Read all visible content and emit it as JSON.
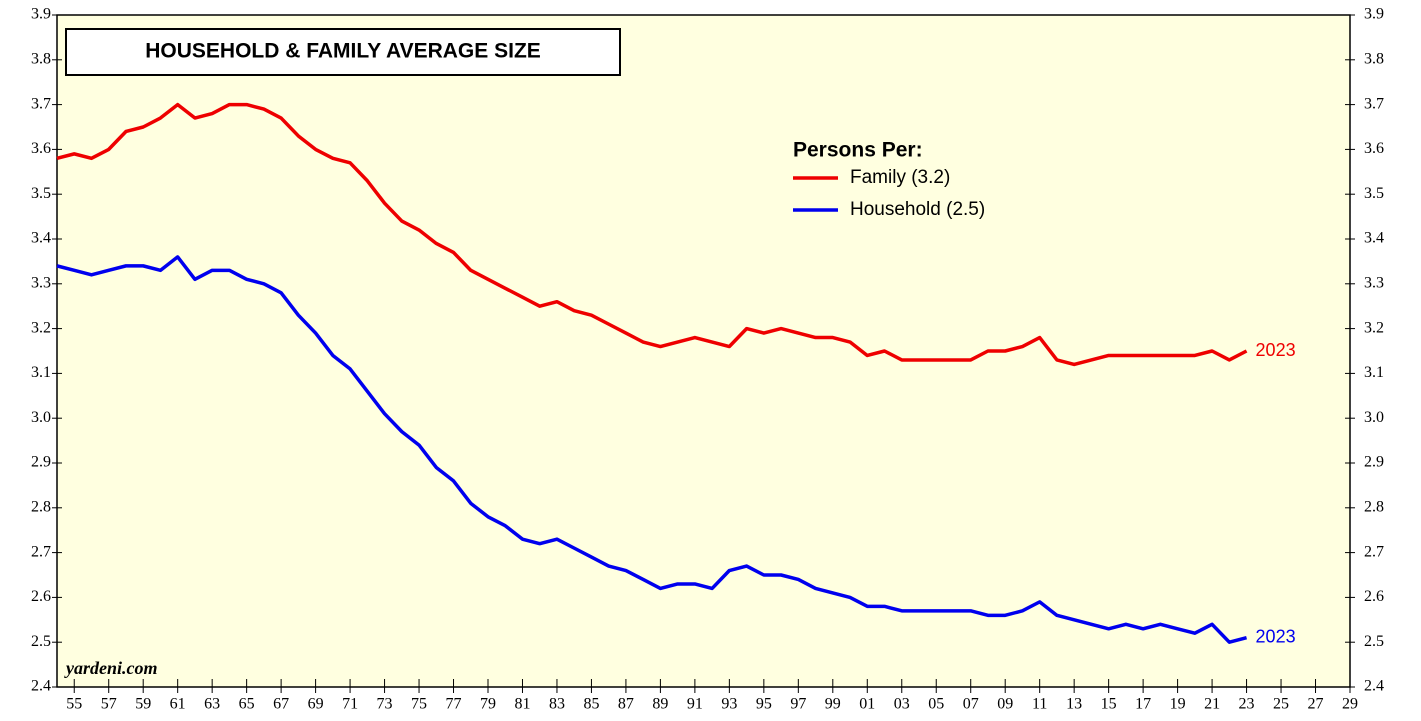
{
  "chart_data": {
    "type": "line",
    "title": "HOUSEHOLD & FAMILY AVERAGE SIZE",
    "legend_title": "Persons Per:",
    "legend": "top-right",
    "watermark": "yardeni.com",
    "x": [
      1954,
      1955,
      1956,
      1957,
      1958,
      1959,
      1960,
      1961,
      1962,
      1963,
      1964,
      1965,
      1966,
      1967,
      1968,
      1969,
      1970,
      1971,
      1972,
      1973,
      1974,
      1975,
      1976,
      1977,
      1978,
      1979,
      1980,
      1981,
      1982,
      1983,
      1984,
      1985,
      1986,
      1987,
      1988,
      1989,
      1990,
      1991,
      1992,
      1993,
      1994,
      1995,
      1996,
      1997,
      1998,
      1999,
      2000,
      2001,
      2002,
      2003,
      2004,
      2005,
      2006,
      2007,
      2008,
      2009,
      2010,
      2011,
      2012,
      2013,
      2014,
      2015,
      2016,
      2017,
      2018,
      2019,
      2020,
      2021,
      2022,
      2023
    ],
    "series": [
      {
        "name": "Family (3.2)",
        "color": "#ee0000",
        "end_label": "2023",
        "values": [
          3.58,
          3.59,
          3.58,
          3.6,
          3.64,
          3.65,
          3.67,
          3.7,
          3.67,
          3.68,
          3.7,
          3.7,
          3.69,
          3.67,
          3.63,
          3.6,
          3.58,
          3.57,
          3.53,
          3.48,
          3.44,
          3.42,
          3.39,
          3.37,
          3.33,
          3.31,
          3.29,
          3.27,
          3.25,
          3.26,
          3.24,
          3.23,
          3.21,
          3.19,
          3.17,
          3.16,
          3.17,
          3.18,
          3.17,
          3.16,
          3.2,
          3.19,
          3.2,
          3.19,
          3.18,
          3.18,
          3.17,
          3.14,
          3.15,
          3.13,
          3.13,
          3.13,
          3.13,
          3.13,
          3.15,
          3.15,
          3.16,
          3.18,
          3.13,
          3.12,
          3.13,
          3.14,
          3.14,
          3.14,
          3.14,
          3.14,
          3.14,
          3.15,
          3.13,
          3.15
        ]
      },
      {
        "name": "Household (2.5)",
        "color": "#0000ee",
        "end_label": "2023",
        "values": [
          3.34,
          3.33,
          3.32,
          3.33,
          3.34,
          3.34,
          3.33,
          3.36,
          3.31,
          3.33,
          3.33,
          3.31,
          3.3,
          3.28,
          3.23,
          3.19,
          3.14,
          3.11,
          3.06,
          3.01,
          2.97,
          2.94,
          2.89,
          2.86,
          2.81,
          2.78,
          2.76,
          2.73,
          2.72,
          2.73,
          2.71,
          2.69,
          2.67,
          2.66,
          2.64,
          2.62,
          2.63,
          2.63,
          2.62,
          2.66,
          2.67,
          2.65,
          2.65,
          2.64,
          2.62,
          2.61,
          2.6,
          2.58,
          2.58,
          2.57,
          2.57,
          2.57,
          2.57,
          2.57,
          2.56,
          2.56,
          2.57,
          2.59,
          2.56,
          2.55,
          2.54,
          2.53,
          2.54,
          2.53,
          2.54,
          2.53,
          2.52,
          2.54,
          2.5,
          2.51
        ]
      }
    ],
    "xlim": [
      1954,
      2029
    ],
    "xticks": [
      {
        "value": 1955,
        "label": "55"
      },
      {
        "value": 1957,
        "label": "57"
      },
      {
        "value": 1959,
        "label": "59"
      },
      {
        "value": 1961,
        "label": "61"
      },
      {
        "value": 1963,
        "label": "63"
      },
      {
        "value": 1965,
        "label": "65"
      },
      {
        "value": 1967,
        "label": "67"
      },
      {
        "value": 1969,
        "label": "69"
      },
      {
        "value": 1971,
        "label": "71"
      },
      {
        "value": 1973,
        "label": "73"
      },
      {
        "value": 1975,
        "label": "75"
      },
      {
        "value": 1977,
        "label": "77"
      },
      {
        "value": 1979,
        "label": "79"
      },
      {
        "value": 1981,
        "label": "81"
      },
      {
        "value": 1983,
        "label": "83"
      },
      {
        "value": 1985,
        "label": "85"
      },
      {
        "value": 1987,
        "label": "87"
      },
      {
        "value": 1989,
        "label": "89"
      },
      {
        "value": 1991,
        "label": "91"
      },
      {
        "value": 1993,
        "label": "93"
      },
      {
        "value": 1995,
        "label": "95"
      },
      {
        "value": 1997,
        "label": "97"
      },
      {
        "value": 1999,
        "label": "99"
      },
      {
        "value": 2001,
        "label": "01"
      },
      {
        "value": 2003,
        "label": "03"
      },
      {
        "value": 2005,
        "label": "05"
      },
      {
        "value": 2007,
        "label": "07"
      },
      {
        "value": 2009,
        "label": "09"
      },
      {
        "value": 2011,
        "label": "11"
      },
      {
        "value": 2013,
        "label": "13"
      },
      {
        "value": 2015,
        "label": "15"
      },
      {
        "value": 2017,
        "label": "17"
      },
      {
        "value": 2019,
        "label": "19"
      },
      {
        "value": 2021,
        "label": "21"
      },
      {
        "value": 2023,
        "label": "23"
      },
      {
        "value": 2025,
        "label": "25"
      },
      {
        "value": 2027,
        "label": "27"
      },
      {
        "value": 2029,
        "label": "29"
      }
    ],
    "ylim": [
      2.4,
      3.9
    ],
    "yticks": [
      2.4,
      2.5,
      2.6,
      2.7,
      2.8,
      2.9,
      {
        "value": 3,
        "label": "3.0"
      },
      3.1,
      3.2,
      3.3,
      3.4,
      3.5,
      3.6,
      3.7,
      3.8,
      3.9
    ],
    "grid": false
  }
}
